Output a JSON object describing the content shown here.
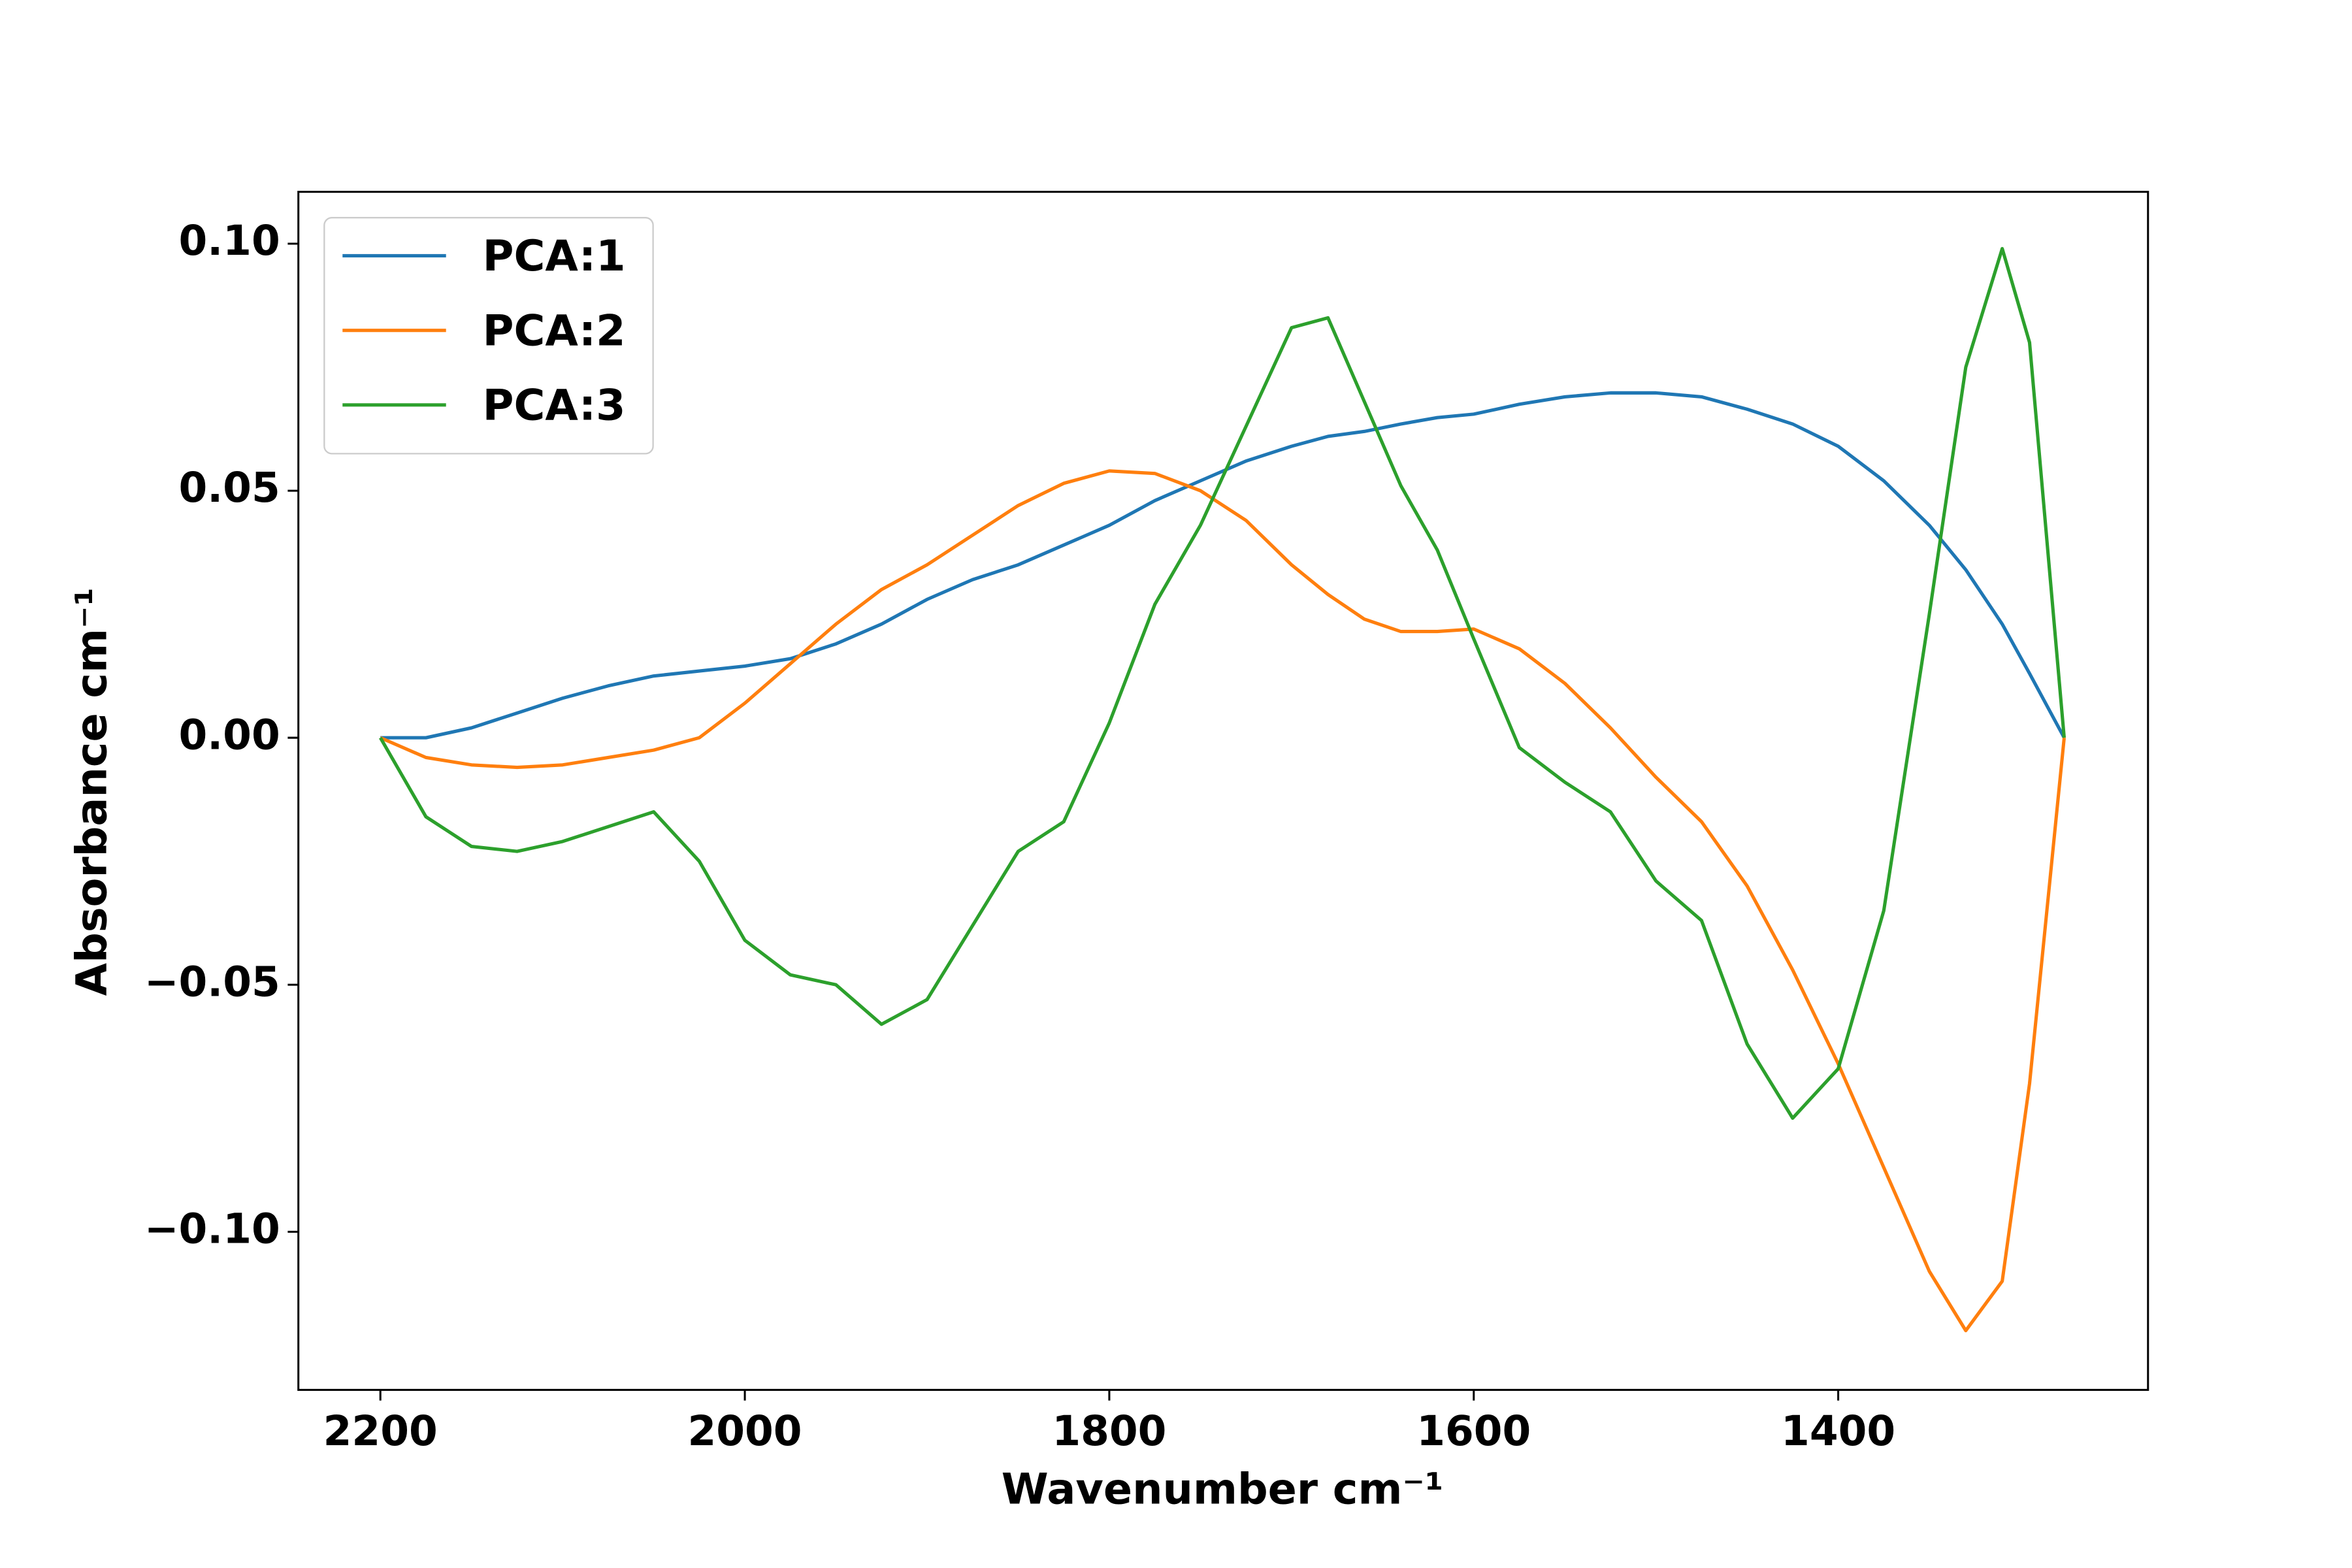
{
  "chart_data": {
    "type": "line",
    "xlabel": "Wavenumber cm⁻¹",
    "ylabel": "Absorbance cm⁻¹",
    "x": [
      2200,
      2175,
      2150,
      2125,
      2100,
      2075,
      2050,
      2025,
      2000,
      1975,
      1950,
      1925,
      1900,
      1875,
      1850,
      1825,
      1800,
      1775,
      1750,
      1725,
      1700,
      1680,
      1660,
      1640,
      1620,
      1600,
      1575,
      1550,
      1525,
      1500,
      1475,
      1450,
      1425,
      1400,
      1375,
      1350,
      1330,
      1310,
      1295,
      1276
    ],
    "series": [
      {
        "name": "PCA:1",
        "color": "#1f77b4",
        "values": [
          0,
          0,
          0.002,
          0.005,
          0.008,
          0.0105,
          0.0125,
          0.0135,
          0.0145,
          0.016,
          0.019,
          0.023,
          0.028,
          0.032,
          0.035,
          0.039,
          0.043,
          0.048,
          0.052,
          0.056,
          0.059,
          0.061,
          0.062,
          0.0635,
          0.0648,
          0.0655,
          0.0675,
          0.069,
          0.0698,
          0.0698,
          0.069,
          0.0665,
          0.0635,
          0.059,
          0.052,
          0.043,
          0.034,
          0.023,
          0.013,
          0
        ]
      },
      {
        "name": "PCA:2",
        "color": "#ff7f0e",
        "values": [
          0,
          -0.004,
          -0.0055,
          -0.006,
          -0.0055,
          -0.004,
          -0.0025,
          0,
          0.007,
          0.015,
          0.023,
          0.03,
          0.035,
          0.041,
          0.047,
          0.0515,
          0.054,
          0.0535,
          0.05,
          0.044,
          0.035,
          0.029,
          0.024,
          0.0215,
          0.0215,
          0.022,
          0.018,
          0.011,
          0.002,
          -0.008,
          -0.017,
          -0.03,
          -0.047,
          -0.066,
          -0.087,
          -0.108,
          -0.12,
          -0.11,
          -0.07,
          0
        ]
      },
      {
        "name": "PCA:3",
        "color": "#2ca02c",
        "values": [
          0,
          -0.016,
          -0.022,
          -0.023,
          -0.021,
          -0.018,
          -0.015,
          -0.025,
          -0.041,
          -0.048,
          -0.05,
          -0.058,
          -0.053,
          -0.038,
          -0.023,
          -0.017,
          0.003,
          0.027,
          0.043,
          0.063,
          0.083,
          0.085,
          0.068,
          0.051,
          0.038,
          0.02,
          -0.002,
          -0.009,
          -0.015,
          -0.029,
          -0.037,
          -0.062,
          -0.077,
          -0.067,
          -0.035,
          0.025,
          0.075,
          0.099,
          0.08,
          0
        ]
      }
    ],
    "xlim": [
      2245,
      1230
    ],
    "ylim": [
      -0.132,
      0.1105
    ],
    "xticks": [
      2200,
      2000,
      1800,
      1600,
      1400
    ],
    "yticks": [
      {
        "value": -0.1,
        "label": "−0.10"
      },
      {
        "value": -0.05,
        "label": "−0.05"
      },
      {
        "value": 0,
        "label": "0.00"
      },
      0.05,
      {
        "value": 0.1,
        "label": "0.10"
      }
    ],
    "legend": "upper left"
  }
}
